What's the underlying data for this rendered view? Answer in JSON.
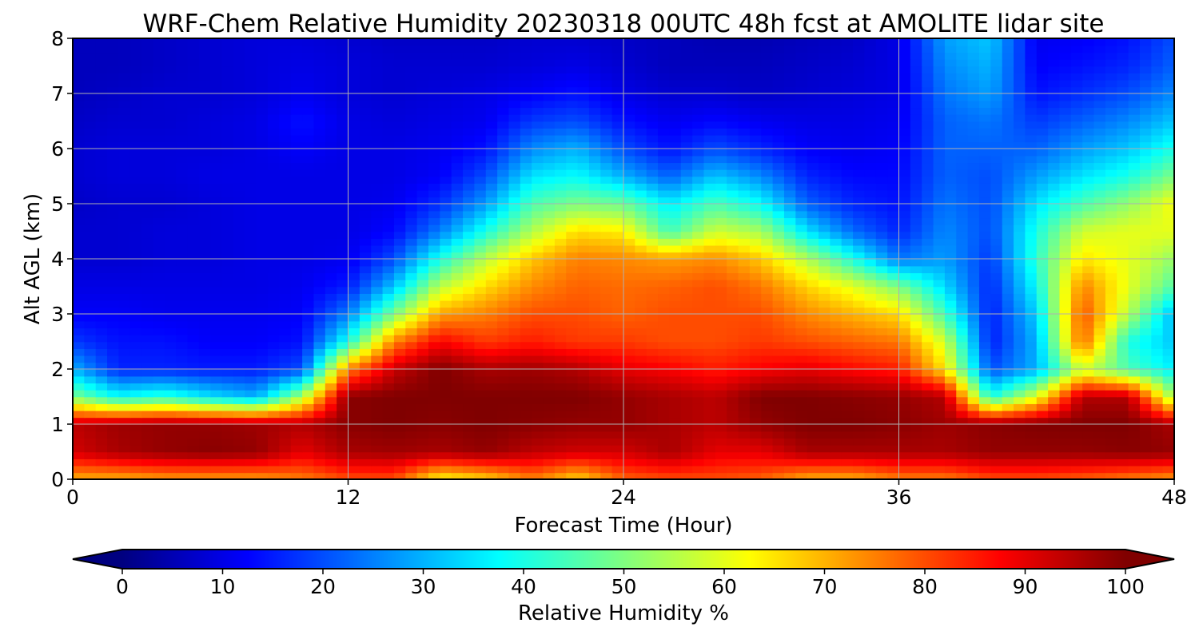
{
  "chart_data": {
    "type": "heatmap",
    "title": "WRF-Chem Relative Humidity 20230318 00UTC 48h fcst at AMOLITE lidar site",
    "xlabel": "Forecast Time (Hour)",
    "ylabel": "Alt AGL (km)",
    "xlim": [
      0,
      48
    ],
    "ylim": [
      0,
      8
    ],
    "x_ticks": [
      "0",
      "12",
      "24",
      "36",
      "48"
    ],
    "y_ticks": [
      "0",
      "1",
      "2",
      "3",
      "4",
      "5",
      "6",
      "7",
      "8"
    ],
    "grid": true,
    "colormap": "jet",
    "z_label": "Relative Humidity %",
    "z_range": [
      0,
      100
    ],
    "colorbar": {
      "label": "Relative Humidity %",
      "ticks": [
        "0",
        "10",
        "20",
        "30",
        "40",
        "50",
        "60",
        "70",
        "80",
        "90",
        "100"
      ],
      "extend": "both",
      "placement": "bottom"
    },
    "x": [
      0,
      2,
      4,
      6,
      8,
      10,
      12,
      14,
      16,
      18,
      20,
      22,
      24,
      26,
      28,
      30,
      32,
      34,
      36,
      38,
      40,
      42,
      44,
      46,
      48
    ],
    "y": [
      0,
      0.5,
      1,
      1.5,
      2,
      2.5,
      3,
      3.5,
      4,
      4.5,
      5,
      5.5,
      6,
      6.5,
      7,
      7.5,
      8
    ],
    "z": [
      [
        70,
        70,
        72,
        72,
        72,
        75,
        80,
        80,
        62,
        66,
        75,
        66,
        78,
        80,
        80,
        78,
        70,
        70,
        75,
        75,
        80,
        80,
        78,
        75,
        72
      ],
      [
        92,
        96,
        98,
        99,
        98,
        90,
        96,
        97,
        96,
        98,
        94,
        92,
        92,
        96,
        90,
        90,
        96,
        96,
        96,
        96,
        98,
        98,
        98,
        99,
        98
      ],
      [
        94,
        97,
        98,
        98,
        97,
        95,
        99,
        100,
        99,
        100,
        99,
        98,
        98,
        96,
        94,
        98,
        100,
        100,
        99,
        97,
        99,
        100,
        100,
        100,
        96
      ],
      [
        50,
        38,
        42,
        35,
        30,
        55,
        99,
        100,
        100,
        100,
        100,
        100,
        98,
        96,
        94,
        100,
        100,
        99,
        98,
        95,
        40,
        60,
        95,
        95,
        52
      ],
      [
        30,
        16,
        16,
        15,
        15,
        20,
        75,
        93,
        100,
        96,
        97,
        95,
        90,
        88,
        85,
        88,
        90,
        87,
        85,
        65,
        20,
        30,
        58,
        45,
        36
      ],
      [
        18,
        14,
        14,
        12,
        12,
        14,
        40,
        75,
        88,
        82,
        85,
        82,
        82,
        80,
        80,
        82,
        80,
        78,
        76,
        58,
        15,
        30,
        78,
        40,
        32
      ],
      [
        12,
        12,
        11,
        11,
        11,
        12,
        25,
        50,
        72,
        75,
        80,
        80,
        78,
        80,
        80,
        80,
        74,
        70,
        66,
        44,
        15,
        33,
        80,
        55,
        30
      ],
      [
        10,
        10,
        10,
        10,
        10,
        11,
        15,
        32,
        56,
        66,
        74,
        78,
        77,
        78,
        80,
        76,
        67,
        60,
        50,
        34,
        16,
        38,
        75,
        60,
        45
      ],
      [
        8,
        8,
        9,
        9,
        10,
        10,
        11,
        20,
        40,
        56,
        68,
        75,
        74,
        72,
        74,
        68,
        55,
        40,
        24,
        28,
        18,
        42,
        65,
        60,
        52
      ],
      [
        8,
        8,
        9,
        9,
        10,
        10,
        10,
        13,
        25,
        40,
        55,
        66,
        64,
        44,
        58,
        54,
        35,
        23,
        16,
        26,
        20,
        40,
        58,
        60,
        60
      ],
      [
        7,
        8,
        8,
        9,
        10,
        10,
        10,
        11,
        17,
        28,
        45,
        50,
        48,
        36,
        45,
        38,
        22,
        16,
        14,
        24,
        20,
        35,
        45,
        52,
        62
      ],
      [
        8,
        9,
        9,
        10,
        10,
        10,
        10,
        10,
        12,
        20,
        35,
        38,
        30,
        22,
        32,
        26,
        16,
        13,
        13,
        22,
        20,
        28,
        35,
        40,
        50
      ],
      [
        8,
        9,
        9,
        9,
        10,
        12,
        10,
        10,
        11,
        14,
        26,
        30,
        20,
        14,
        20,
        16,
        12,
        11,
        12,
        22,
        22,
        22,
        28,
        32,
        40
      ],
      [
        7,
        8,
        8,
        9,
        10,
        14,
        10,
        9,
        10,
        11,
        18,
        20,
        14,
        11,
        13,
        11,
        10,
        10,
        11,
        22,
        24,
        18,
        22,
        26,
        32
      ],
      [
        6,
        7,
        8,
        8,
        9,
        11,
        9,
        8,
        9,
        10,
        12,
        14,
        10,
        8,
        8,
        7,
        8,
        9,
        10,
        24,
        28,
        14,
        17,
        20,
        26
      ],
      [
        6,
        6,
        7,
        8,
        9,
        10,
        9,
        8,
        8,
        8,
        9,
        10,
        8,
        6,
        6,
        6,
        7,
        8,
        10,
        26,
        30,
        12,
        14,
        16,
        22
      ],
      [
        6,
        6,
        7,
        8,
        9,
        9,
        8,
        7,
        7,
        7,
        8,
        8,
        7,
        6,
        5,
        5,
        6,
        7,
        10,
        28,
        32,
        11,
        12,
        14,
        20
      ]
    ]
  }
}
